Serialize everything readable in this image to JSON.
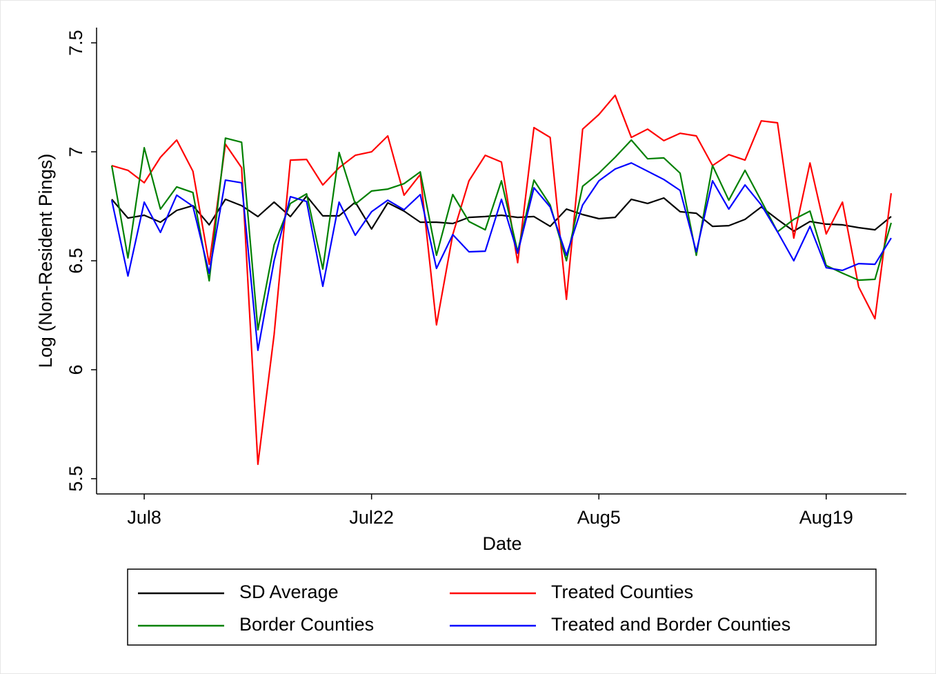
{
  "chart_data": {
    "type": "line",
    "xlabel": "Date",
    "ylabel": "Log (Non-Resident Pings)",
    "categories": [
      null,
      null,
      "Jul8",
      null,
      null,
      null,
      null,
      null,
      null,
      null,
      null,
      null,
      null,
      null,
      null,
      null,
      "Jul22",
      null,
      null,
      null,
      null,
      null,
      null,
      null,
      null,
      null,
      null,
      null,
      null,
      null,
      "Aug5",
      null,
      null,
      null,
      null,
      null,
      null,
      null,
      null,
      null,
      null,
      null,
      null,
      null,
      "Aug19",
      null,
      null,
      null,
      null
    ],
    "ylim": [
      5.43,
      7.57
    ],
    "yticks": [
      5.5,
      6,
      6.5,
      7,
      7.5
    ],
    "grid": false,
    "legend": "bottom",
    "series": [
      {
        "name": "SD Average",
        "color": "#000000",
        "values": [
          6.782,
          6.696,
          6.709,
          6.677,
          6.731,
          6.753,
          6.665,
          6.782,
          6.753,
          6.703,
          6.769,
          6.703,
          6.797,
          6.706,
          6.706,
          6.769,
          6.646,
          6.766,
          6.728,
          6.677,
          6.677,
          6.671,
          6.699,
          6.703,
          6.709,
          6.699,
          6.703,
          6.658,
          6.737,
          6.712,
          6.693,
          6.699,
          6.782,
          6.763,
          6.788,
          6.725,
          6.718,
          6.658,
          6.661,
          6.69,
          6.747,
          6.69,
          6.636,
          6.68,
          6.668,
          6.665,
          6.652,
          6.642,
          6.703
        ]
      },
      {
        "name": "Treated Counties",
        "color": "#ff0000",
        "values": [
          6.937,
          6.915,
          6.858,
          6.975,
          7.054,
          6.911,
          6.484,
          7.035,
          6.927,
          5.566,
          6.161,
          6.962,
          6.965,
          6.848,
          6.927,
          6.984,
          7.0,
          7.073,
          6.801,
          6.896,
          6.206,
          6.62,
          6.867,
          6.984,
          6.953,
          6.491,
          7.111,
          7.066,
          6.323,
          7.104,
          7.171,
          7.259,
          7.066,
          7.104,
          7.051,
          7.085,
          7.073,
          6.937,
          6.987,
          6.962,
          7.142,
          7.133,
          6.604,
          6.949,
          6.623,
          6.769,
          6.38,
          6.234,
          6.81
        ]
      },
      {
        "name": "Border Counties",
        "color": "#008000",
        "values": [
          6.937,
          6.513,
          7.019,
          6.737,
          6.839,
          6.813,
          6.408,
          7.063,
          7.044,
          6.183,
          6.573,
          6.763,
          6.807,
          6.462,
          6.997,
          6.76,
          6.82,
          6.829,
          6.854,
          6.908,
          6.525,
          6.804,
          6.68,
          6.642,
          6.867,
          6.541,
          6.87,
          6.756,
          6.5,
          6.842,
          6.902,
          6.975,
          7.054,
          6.968,
          6.972,
          6.902,
          6.525,
          6.937,
          6.778,
          6.915,
          6.775,
          6.633,
          6.69,
          6.728,
          6.478,
          6.443,
          6.411,
          6.415,
          6.674
        ]
      },
      {
        "name": "Treated and Border Counties",
        "color": "#0000ff",
        "values": [
          6.778,
          6.43,
          6.769,
          6.63,
          6.801,
          6.75,
          6.443,
          6.87,
          6.858,
          6.089,
          6.5,
          6.794,
          6.772,
          6.383,
          6.769,
          6.617,
          6.725,
          6.778,
          6.734,
          6.804,
          6.465,
          6.62,
          6.541,
          6.544,
          6.782,
          6.535,
          6.835,
          6.747,
          6.525,
          6.756,
          6.867,
          6.921,
          6.949,
          6.911,
          6.873,
          6.823,
          6.541,
          6.867,
          6.737,
          6.848,
          6.756,
          6.633,
          6.5,
          6.658,
          6.468,
          6.456,
          6.487,
          6.484,
          6.604
        ]
      }
    ]
  }
}
